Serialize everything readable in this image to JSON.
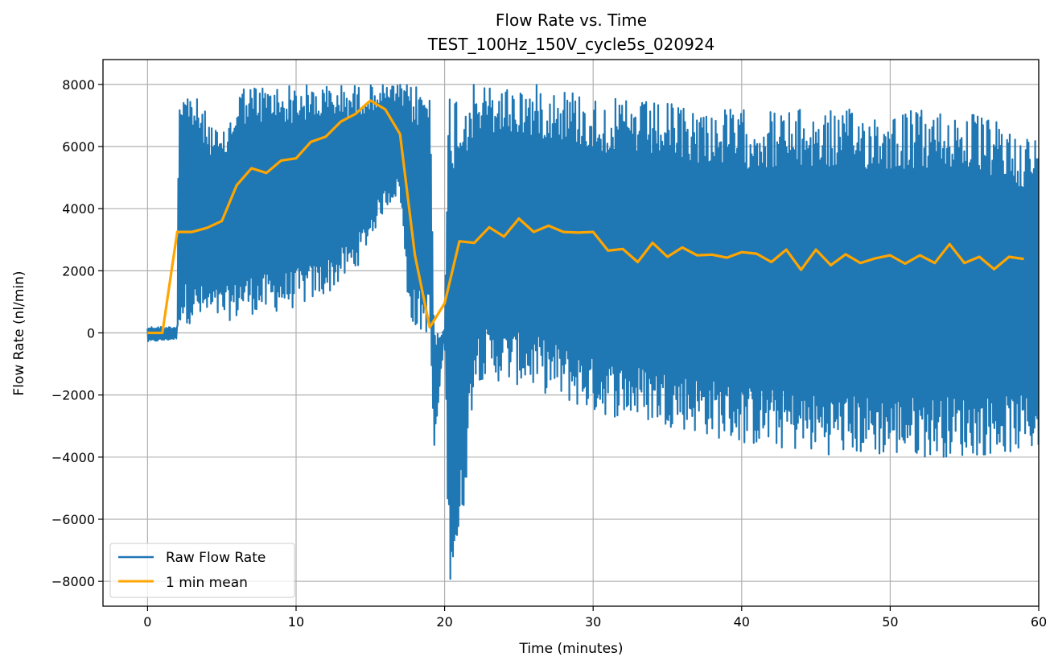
{
  "chart_data": {
    "type": "line",
    "title": "Flow Rate vs. Time",
    "subtitle": "TEST_100Hz_150V_cycle5s_020924",
    "xlabel": "Time (minutes)",
    "ylabel": "Flow Rate (nl/min)",
    "xlim": [
      -3,
      60
    ],
    "ylim": [
      -8800,
      8800
    ],
    "x_ticks": [
      0,
      10,
      20,
      30,
      40,
      50,
      60
    ],
    "y_ticks": [
      -8000,
      -6000,
      -4000,
      -2000,
      0,
      2000,
      4000,
      6000,
      8000
    ],
    "x_tick_labels": [
      "0",
      "10",
      "20",
      "30",
      "40",
      "50",
      "60"
    ],
    "y_tick_labels": [
      "−8000",
      "−6000",
      "−4000",
      "−2000",
      "0",
      "2000",
      "4000",
      "6000",
      "8000"
    ],
    "grid": true,
    "legend_position": "lower-left",
    "series": [
      {
        "name": "Raw Flow Rate",
        "color": "#1f77b4",
        "style": "oscillating",
        "envelope_x": [
          0,
          2,
          2.1,
          3,
          5,
          6,
          6.2,
          8,
          10,
          12,
          14,
          16,
          17,
          17.5,
          18,
          18.5,
          19,
          19.3,
          20,
          20.3,
          21,
          22,
          24,
          26,
          28,
          30,
          35,
          40,
          45,
          50,
          55,
          60
        ],
        "envelope_max": [
          200,
          200,
          8000,
          7800,
          6300,
          7600,
          8000,
          8000,
          8000,
          8000,
          8000,
          8000,
          8000,
          8000,
          8000,
          8000,
          8000,
          200,
          100,
          8000,
          8000,
          8000,
          8000,
          8000,
          8000,
          7600,
          7400,
          7200,
          7200,
          7200,
          7200,
          6300
        ],
        "envelope_min": [
          -300,
          -200,
          300,
          300,
          400,
          400,
          600,
          600,
          800,
          1200,
          2000,
          4000,
          4500,
          1000,
          0,
          0,
          0,
          -4000,
          0,
          -8000,
          -7500,
          -1500,
          -1600,
          -1800,
          -2200,
          -2600,
          -3000,
          -3600,
          -3900,
          -4000,
          -4000,
          -3800
        ]
      },
      {
        "name": "1 min mean",
        "color": "#ffa500",
        "x": [
          0,
          1,
          2,
          3,
          4,
          5,
          6,
          7,
          8,
          9,
          10,
          11,
          12,
          13,
          14,
          15,
          16,
          17,
          18,
          19,
          20,
          21,
          22,
          23,
          24,
          25,
          26,
          27,
          28,
          29,
          30,
          31,
          32,
          33,
          34,
          35,
          36,
          37,
          38,
          39,
          40,
          41,
          42,
          43,
          44,
          45,
          46,
          47,
          48,
          49,
          50,
          51,
          52,
          53,
          54,
          55,
          56,
          57,
          58,
          59
        ],
        "y": [
          0,
          0,
          3250,
          3250,
          3380,
          3600,
          4750,
          5300,
          5150,
          5550,
          5620,
          6150,
          6320,
          6800,
          7050,
          7480,
          7200,
          6400,
          2500,
          180,
          950,
          2950,
          2900,
          3400,
          3100,
          3680,
          3250,
          3450,
          3250,
          3230,
          3250,
          2650,
          2700,
          2280,
          2900,
          2450,
          2750,
          2500,
          2520,
          2420,
          2600,
          2550,
          2280,
          2680,
          2030,
          2680,
          2180,
          2530,
          2250,
          2400,
          2500,
          2230,
          2500,
          2250,
          2860,
          2250,
          2450,
          2050,
          2450,
          2380
        ]
      }
    ]
  }
}
